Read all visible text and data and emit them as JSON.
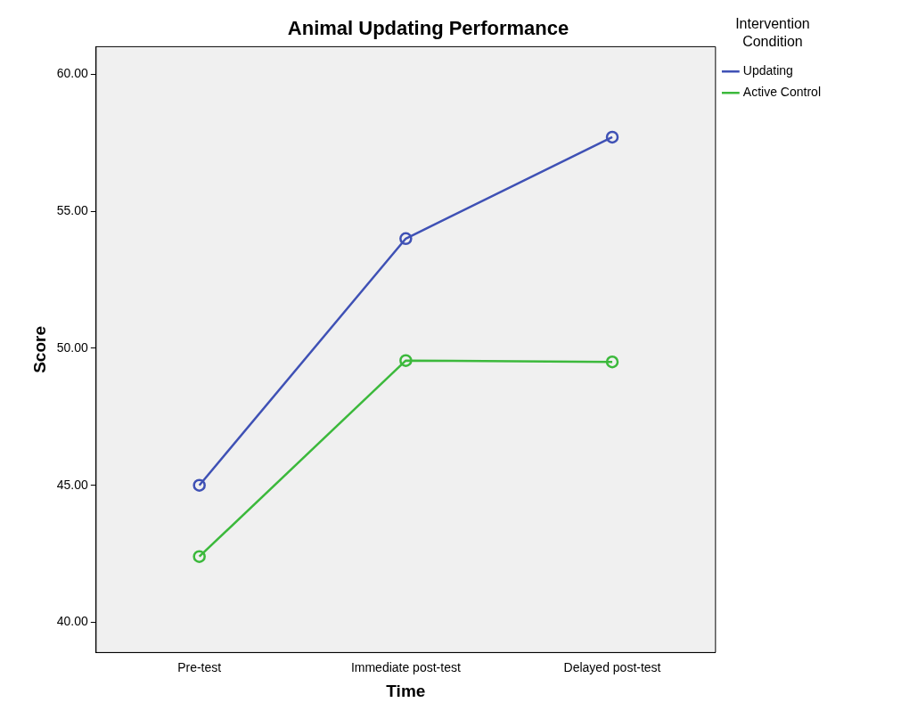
{
  "chart_data": {
    "type": "line",
    "title": "Animal Updating Performance",
    "xlabel": "Time",
    "ylabel": "Score",
    "legend_title": "Intervention Condition",
    "categories": [
      "Pre-test",
      "Immediate post-test",
      "Delayed post-test"
    ],
    "series": [
      {
        "name": "Updating",
        "color": "#3f51b5",
        "values": [
          45.0,
          54.0,
          57.7
        ]
      },
      {
        "name": "Active Control",
        "color": "#3cb93c",
        "values": [
          42.4,
          49.55,
          49.5
        ]
      }
    ],
    "ylim": [
      38.9,
      61.0
    ],
    "yticks": [
      {
        "value": 40,
        "label": "40.00"
      },
      {
        "value": 45,
        "label": "45.00"
      },
      {
        "value": 50,
        "label": "50.00"
      },
      {
        "value": 55,
        "label": "55.00"
      },
      {
        "value": 60,
        "label": "60.00"
      }
    ],
    "grid": false,
    "legend": "top right",
    "marker": "circle",
    "line_style": "solid"
  }
}
